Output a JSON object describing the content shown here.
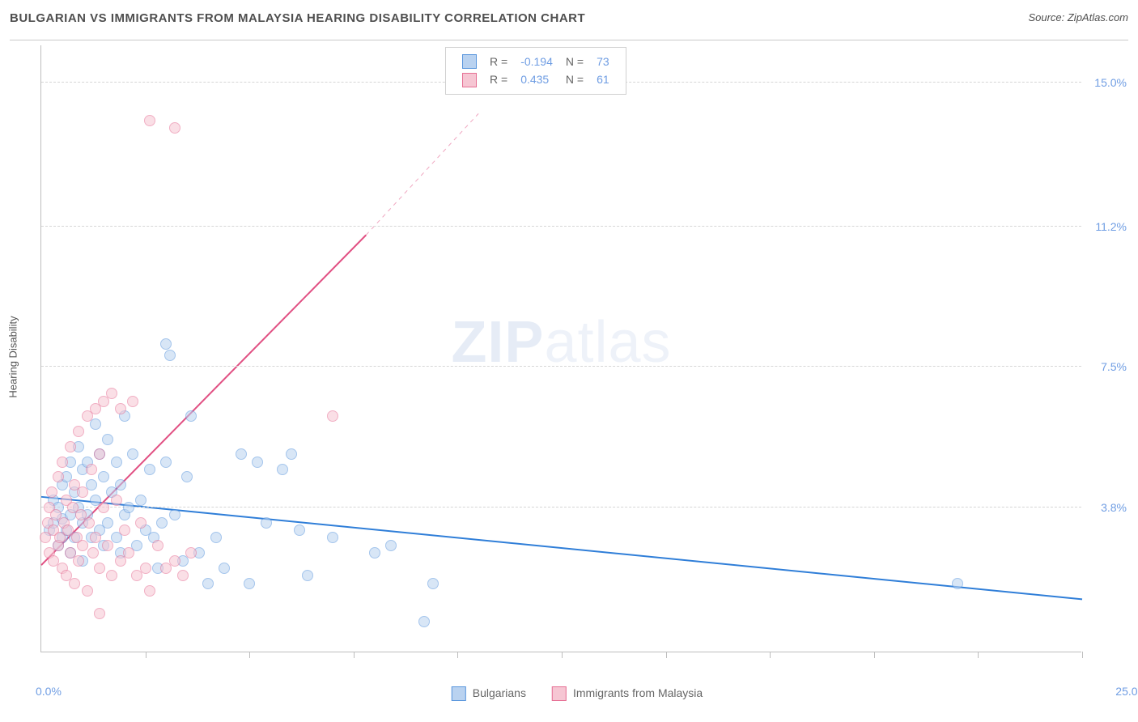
{
  "header": {
    "title": "BULGARIAN VS IMMIGRANTS FROM MALAYSIA HEARING DISABILITY CORRELATION CHART",
    "source": "Source: ZipAtlas.com"
  },
  "chart": {
    "type": "scatter",
    "ylabel": "Hearing Disability",
    "watermark_a": "ZIP",
    "watermark_b": "atlas",
    "background_color": "#ffffff",
    "grid_color": "#d6d6d6",
    "axis_color": "#bdbdbd",
    "yaxis_label_color": "#6f9de3",
    "xlim": [
      0.0,
      25.0
    ],
    "ylim": [
      0.0,
      16.0
    ],
    "y_gridlines": [
      3.8,
      7.5,
      11.2,
      15.0
    ],
    "y_gridline_labels": [
      "3.8%",
      "7.5%",
      "11.2%",
      "15.0%"
    ],
    "x_ticks": [
      2.5,
      5.0,
      7.5,
      10.0,
      12.5,
      15.0,
      17.5,
      20.0,
      22.5,
      25.0
    ],
    "x_origin_label": "0.0%",
    "x_max_label": "25.0%",
    "marker_radius": 7,
    "marker_stroke_width": 1,
    "series": [
      {
        "key": "bulgarians",
        "label": "Bulgarians",
        "fill": "#b9d2f0",
        "stroke": "#5a96dd",
        "fill_opacity": 0.55,
        "R": "-0.194",
        "N": "73",
        "trend": {
          "x1": 0.0,
          "y1": 4.1,
          "x2": 25.0,
          "y2": 1.4,
          "color": "#2f7ed8",
          "width": 2
        },
        "points": [
          [
            0.2,
            3.2
          ],
          [
            0.3,
            4.0
          ],
          [
            0.3,
            3.4
          ],
          [
            0.4,
            3.8
          ],
          [
            0.4,
            2.8
          ],
          [
            0.5,
            3.5
          ],
          [
            0.5,
            4.4
          ],
          [
            0.5,
            3.0
          ],
          [
            0.6,
            4.6
          ],
          [
            0.6,
            3.2
          ],
          [
            0.7,
            3.6
          ],
          [
            0.7,
            5.0
          ],
          [
            0.7,
            2.6
          ],
          [
            0.8,
            4.2
          ],
          [
            0.8,
            3.0
          ],
          [
            0.9,
            3.8
          ],
          [
            0.9,
            5.4
          ],
          [
            1.0,
            4.8
          ],
          [
            1.0,
            3.4
          ],
          [
            1.0,
            2.4
          ],
          [
            1.1,
            5.0
          ],
          [
            1.1,
            3.6
          ],
          [
            1.2,
            4.4
          ],
          [
            1.2,
            3.0
          ],
          [
            1.3,
            6.0
          ],
          [
            1.3,
            4.0
          ],
          [
            1.4,
            5.2
          ],
          [
            1.4,
            3.2
          ],
          [
            1.5,
            4.6
          ],
          [
            1.5,
            2.8
          ],
          [
            1.6,
            3.4
          ],
          [
            1.6,
            5.6
          ],
          [
            1.7,
            4.2
          ],
          [
            1.8,
            3.0
          ],
          [
            1.8,
            5.0
          ],
          [
            1.9,
            2.6
          ],
          [
            1.9,
            4.4
          ],
          [
            2.0,
            3.6
          ],
          [
            2.0,
            6.2
          ],
          [
            2.1,
            3.8
          ],
          [
            2.2,
            5.2
          ],
          [
            2.3,
            2.8
          ],
          [
            2.4,
            4.0
          ],
          [
            2.5,
            3.2
          ],
          [
            2.6,
            4.8
          ],
          [
            2.7,
            3.0
          ],
          [
            2.8,
            2.2
          ],
          [
            2.9,
            3.4
          ],
          [
            3.0,
            8.1
          ],
          [
            3.0,
            5.0
          ],
          [
            3.1,
            7.8
          ],
          [
            3.2,
            3.6
          ],
          [
            3.4,
            2.4
          ],
          [
            3.5,
            4.6
          ],
          [
            3.6,
            6.2
          ],
          [
            3.8,
            2.6
          ],
          [
            4.0,
            1.8
          ],
          [
            4.2,
            3.0
          ],
          [
            4.4,
            2.2
          ],
          [
            4.8,
            5.2
          ],
          [
            5.0,
            1.8
          ],
          [
            5.2,
            5.0
          ],
          [
            5.4,
            3.4
          ],
          [
            5.8,
            4.8
          ],
          [
            6.0,
            5.2
          ],
          [
            6.2,
            3.2
          ],
          [
            6.4,
            2.0
          ],
          [
            7.0,
            3.0
          ],
          [
            8.0,
            2.6
          ],
          [
            8.4,
            2.8
          ],
          [
            9.2,
            0.8
          ],
          [
            9.4,
            1.8
          ],
          [
            22.0,
            1.8
          ]
        ]
      },
      {
        "key": "malaysia",
        "label": "Immigrants from Malaysia",
        "fill": "#f6c6d3",
        "stroke": "#e66f94",
        "fill_opacity": 0.55,
        "R": "0.435",
        "N": "61",
        "trend": {
          "x1": 0.0,
          "y1": 2.3,
          "x2": 7.8,
          "y2": 11.0,
          "color": "#e15083",
          "width": 2,
          "dash_from_x": 7.8,
          "dash_to": [
            10.5,
            14.2
          ]
        },
        "points": [
          [
            0.1,
            3.0
          ],
          [
            0.15,
            3.4
          ],
          [
            0.2,
            2.6
          ],
          [
            0.2,
            3.8
          ],
          [
            0.25,
            4.2
          ],
          [
            0.3,
            3.2
          ],
          [
            0.3,
            2.4
          ],
          [
            0.35,
            3.6
          ],
          [
            0.4,
            2.8
          ],
          [
            0.4,
            4.6
          ],
          [
            0.45,
            3.0
          ],
          [
            0.5,
            5.0
          ],
          [
            0.5,
            2.2
          ],
          [
            0.55,
            3.4
          ],
          [
            0.6,
            4.0
          ],
          [
            0.6,
            2.0
          ],
          [
            0.65,
            3.2
          ],
          [
            0.7,
            5.4
          ],
          [
            0.7,
            2.6
          ],
          [
            0.75,
            3.8
          ],
          [
            0.8,
            4.4
          ],
          [
            0.8,
            1.8
          ],
          [
            0.85,
            3.0
          ],
          [
            0.9,
            5.8
          ],
          [
            0.9,
            2.4
          ],
          [
            0.95,
            3.6
          ],
          [
            1.0,
            4.2
          ],
          [
            1.0,
            2.8
          ],
          [
            1.1,
            6.2
          ],
          [
            1.1,
            1.6
          ],
          [
            1.15,
            3.4
          ],
          [
            1.2,
            4.8
          ],
          [
            1.25,
            2.6
          ],
          [
            1.3,
            6.4
          ],
          [
            1.3,
            3.0
          ],
          [
            1.4,
            5.2
          ],
          [
            1.4,
            2.2
          ],
          [
            1.5,
            6.6
          ],
          [
            1.5,
            3.8
          ],
          [
            1.6,
            2.8
          ],
          [
            1.7,
            6.8
          ],
          [
            1.7,
            2.0
          ],
          [
            1.8,
            4.0
          ],
          [
            1.9,
            2.4
          ],
          [
            2.0,
            3.2
          ],
          [
            2.1,
            2.6
          ],
          [
            2.2,
            6.6
          ],
          [
            2.3,
            2.0
          ],
          [
            2.4,
            3.4
          ],
          [
            2.5,
            2.2
          ],
          [
            2.6,
            1.6
          ],
          [
            2.8,
            2.8
          ],
          [
            3.0,
            2.2
          ],
          [
            3.2,
            2.4
          ],
          [
            3.4,
            2.0
          ],
          [
            3.6,
            2.6
          ],
          [
            1.4,
            1.0
          ],
          [
            2.6,
            14.0
          ],
          [
            3.2,
            13.8
          ],
          [
            7.0,
            6.2
          ],
          [
            1.9,
            6.4
          ]
        ]
      }
    ]
  }
}
